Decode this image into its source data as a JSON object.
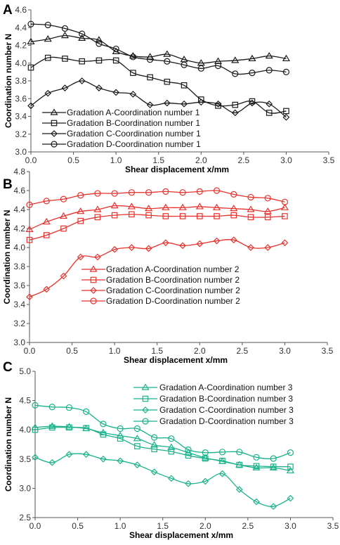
{
  "chart_data": [
    {
      "type": "line",
      "panel_label": "A",
      "xlabel": "Shear displacement x/mm",
      "ylabel": "Coordination number N",
      "xlim": [
        0,
        3.5
      ],
      "ylim": [
        3.0,
        4.6
      ],
      "xticks": [
        "0.0",
        "0.5",
        "1.0",
        "1.5",
        "2.0",
        "2.5",
        "3.0",
        "3.5"
      ],
      "yticks": [
        "3.0",
        "3.2",
        "3.4",
        "3.6",
        "3.8",
        "4.0",
        "4.2",
        "4.4",
        "4.6"
      ],
      "color": "#1a1a1a",
      "grid": false,
      "legend_position": "bottom-left",
      "x": [
        0.0,
        0.2,
        0.4,
        0.6,
        0.8,
        1.0,
        1.2,
        1.4,
        1.6,
        1.8,
        2.0,
        2.2,
        2.4,
        2.6,
        2.8,
        3.0
      ],
      "series": [
        {
          "name": "Gradation A-Coordination number 1",
          "marker": "triangle",
          "values": [
            4.24,
            4.27,
            4.31,
            4.28,
            4.26,
            4.13,
            4.08,
            4.07,
            4.1,
            4.04,
            4.0,
            4.02,
            4.03,
            4.05,
            4.08,
            4.05
          ]
        },
        {
          "name": "Gradation B-Coordination number 1",
          "marker": "square",
          "values": [
            3.95,
            4.06,
            4.05,
            4.02,
            4.03,
            4.03,
            3.89,
            3.84,
            3.79,
            3.75,
            3.59,
            3.52,
            3.53,
            3.57,
            3.44,
            3.46
          ]
        },
        {
          "name": "Gradation C-Coordination number 1",
          "marker": "diamond",
          "values": [
            3.52,
            3.66,
            3.72,
            3.8,
            3.72,
            3.67,
            3.65,
            3.53,
            3.55,
            3.54,
            3.56,
            3.54,
            3.44,
            3.55,
            3.54,
            3.39
          ]
        },
        {
          "name": "Gradation D-Coordination number 1",
          "marker": "circle",
          "values": [
            4.44,
            4.43,
            4.39,
            4.33,
            4.22,
            4.16,
            4.07,
            4.04,
            4.02,
            3.98,
            3.94,
            3.97,
            3.88,
            3.89,
            3.92,
            3.9
          ]
        }
      ]
    },
    {
      "type": "line",
      "panel_label": "B",
      "xlabel": "Shear displacement x/mm",
      "ylabel": "Coordination number N",
      "xlim": [
        0,
        3.5
      ],
      "ylim": [
        3.0,
        4.8
      ],
      "xticks": [
        "0.0",
        "0.5",
        "1.0",
        "1.5",
        "2.0",
        "2.5",
        "3.0",
        "3.5"
      ],
      "yticks": [
        "3.0",
        "3.2",
        "3.4",
        "3.6",
        "3.8",
        "4.0",
        "4.2",
        "4.4",
        "4.6",
        "4.8"
      ],
      "color": "#e8322d",
      "grid": false,
      "legend_position": "bottom-left",
      "x": [
        0.0,
        0.2,
        0.4,
        0.6,
        0.8,
        1.0,
        1.2,
        1.4,
        1.6,
        1.8,
        2.0,
        2.2,
        2.4,
        2.6,
        2.8,
        3.0
      ],
      "series": [
        {
          "name": "Gradation A-Coordination number 2",
          "marker": "triangle",
          "values": [
            4.19,
            4.27,
            4.33,
            4.38,
            4.4,
            4.44,
            4.43,
            4.41,
            4.42,
            4.42,
            4.43,
            4.42,
            4.41,
            4.4,
            4.38,
            4.42
          ]
        },
        {
          "name": "Gradation B-Coordination number 2",
          "marker": "square",
          "values": [
            4.08,
            4.13,
            4.2,
            4.28,
            4.32,
            4.34,
            4.35,
            4.34,
            4.33,
            4.33,
            4.33,
            4.33,
            4.34,
            4.32,
            4.32,
            4.33
          ]
        },
        {
          "name": "Gradation C-Coordination number 2",
          "marker": "diamond",
          "values": [
            3.48,
            3.56,
            3.7,
            3.9,
            3.9,
            3.98,
            4.0,
            3.99,
            4.05,
            4.02,
            4.04,
            4.07,
            4.08,
            4.0,
            4.0,
            4.05
          ]
        },
        {
          "name": "Gradation D-Coordination number 2",
          "marker": "circle",
          "values": [
            4.45,
            4.49,
            4.51,
            4.55,
            4.57,
            4.57,
            4.58,
            4.58,
            4.59,
            4.58,
            4.59,
            4.6,
            4.56,
            4.53,
            4.52,
            4.48
          ]
        }
      ]
    },
    {
      "type": "line",
      "panel_label": "C",
      "xlabel": "Shear displacement x/mm",
      "ylabel": "Coordination number N",
      "xlim": [
        0,
        3.5
      ],
      "ylim": [
        2.5,
        5.0
      ],
      "xticks": [
        "0.0",
        "0.5",
        "1.0",
        "1.5",
        "2.0",
        "2.5",
        "3.0",
        "3.5"
      ],
      "yticks": [
        "2.5",
        "3.0",
        "3.5",
        "4.0",
        "4.5",
        "5.0"
      ],
      "color": "#19b28a",
      "grid": false,
      "legend_position": "top-right",
      "x": [
        0.0,
        0.2,
        0.4,
        0.6,
        0.8,
        1.0,
        1.2,
        1.4,
        1.6,
        1.8,
        2.0,
        2.2,
        2.4,
        2.6,
        2.8,
        3.0
      ],
      "series": [
        {
          "name": "Gradation A-Coordination number 3",
          "marker": "triangle",
          "values": [
            4.04,
            4.06,
            4.05,
            4.02,
            3.95,
            3.9,
            3.85,
            3.74,
            3.7,
            3.61,
            3.52,
            3.46,
            3.4,
            3.35,
            3.35,
            3.3
          ]
        },
        {
          "name": "Gradation B-Coordination number 3",
          "marker": "square",
          "values": [
            4.0,
            4.04,
            4.04,
            4.03,
            3.92,
            3.85,
            3.72,
            3.67,
            3.63,
            3.56,
            3.51,
            3.47,
            3.4,
            3.38,
            3.37,
            3.37
          ]
        },
        {
          "name": "Gradation C-Coordination number 3",
          "marker": "diamond",
          "values": [
            3.53,
            3.44,
            3.58,
            3.58,
            3.5,
            3.47,
            3.4,
            3.28,
            3.17,
            3.08,
            3.12,
            3.25,
            2.98,
            2.77,
            2.69,
            2.83
          ]
        },
        {
          "name": "Gradation D-Coordination number 3",
          "marker": "circle",
          "values": [
            4.42,
            4.39,
            4.38,
            4.31,
            4.1,
            4.02,
            4.02,
            3.87,
            3.85,
            3.66,
            3.61,
            3.62,
            3.62,
            3.53,
            3.51,
            3.61
          ]
        }
      ]
    }
  ]
}
